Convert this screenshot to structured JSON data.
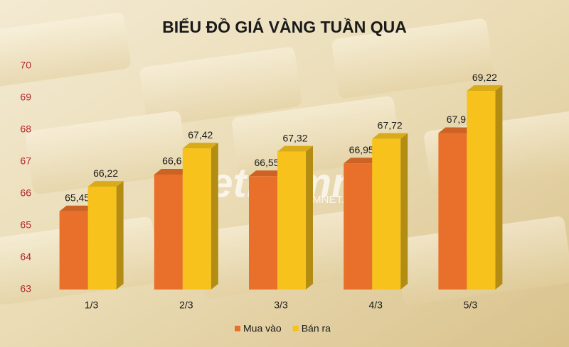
{
  "chart_data": {
    "type": "bar3d",
    "title": "BIỂU ĐỒ GIÁ VÀNG TUẦN QUA",
    "categories": [
      "1/3",
      "2/3",
      "3/3",
      "4/3",
      "5/3"
    ],
    "series": [
      {
        "name": "Mua vào",
        "color": "#e8702a",
        "values": [
          65.45,
          66.6,
          66.55,
          66.95,
          67.9
        ],
        "value_labels": [
          "65,45",
          "66,6",
          "66,55",
          "66,95",
          "67,9"
        ]
      },
      {
        "name": "Bán ra",
        "color": "#f7c21b",
        "values": [
          66.22,
          67.42,
          67.32,
          67.72,
          69.22
        ],
        "value_labels": [
          "66,22",
          "67,42",
          "67,32",
          "67,72",
          "69,22"
        ]
      }
    ],
    "ylim": [
      63,
      70
    ],
    "yticks": [
      63,
      64,
      65,
      66,
      67,
      68,
      69,
      70
    ],
    "legend": "bottom",
    "watermark": "vietnamnet",
    "watermark_sub": "VIETNAMNET.VN"
  }
}
